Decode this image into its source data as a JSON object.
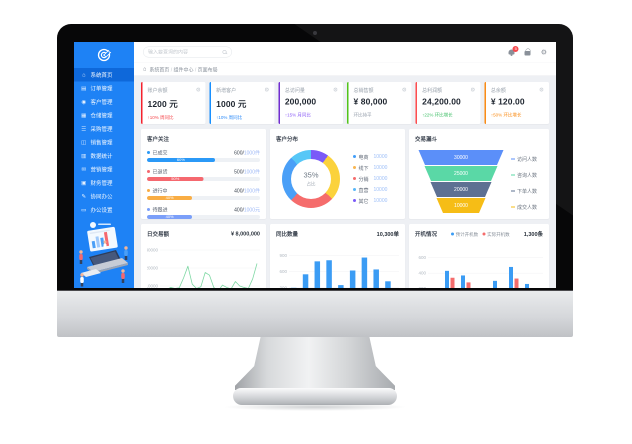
{
  "topbar": {
    "search_placeholder": "输入要查询的内容",
    "notification_badge": "5"
  },
  "breadcrumb": {
    "items": [
      "系统首页",
      "组件中心",
      "页面布局"
    ]
  },
  "sidebar": {
    "items": [
      {
        "id": "home",
        "icon": "home-icon",
        "label": "系统首页",
        "active": true
      },
      {
        "id": "orders",
        "icon": "order-icon",
        "label": "订单管理",
        "active": false
      },
      {
        "id": "customers",
        "icon": "customer-icon",
        "label": "客户管理",
        "active": false
      },
      {
        "id": "warehouse",
        "icon": "warehouse-icon",
        "label": "仓储管理",
        "active": false
      },
      {
        "id": "purchase",
        "icon": "purchase-icon",
        "label": "采购管理",
        "active": false
      },
      {
        "id": "sales",
        "icon": "sales-icon",
        "label": "销售管理",
        "active": false
      },
      {
        "id": "stats",
        "icon": "stats-icon",
        "label": "数据统计",
        "active": false
      },
      {
        "id": "marketing",
        "icon": "marketing-icon",
        "label": "营销管理",
        "active": false
      },
      {
        "id": "finance",
        "icon": "finance-icon",
        "label": "财务管理",
        "active": false
      },
      {
        "id": "office",
        "icon": "office-icon",
        "label": "协同办公",
        "active": false
      },
      {
        "id": "settings",
        "icon": "settings-icon",
        "label": "办公设置",
        "active": false
      }
    ]
  },
  "kpi_cards": [
    {
      "accent": "#f5222d",
      "title": "账户余额",
      "value": "1200 元",
      "sub": "↑10% 周同比",
      "sub_color": "#f5484d"
    },
    {
      "accent": "#1890ff",
      "title": "新增客户",
      "value": "1000 元",
      "sub": "↑10% 周同比",
      "sub_color": "#2c8af8"
    },
    {
      "accent": "#722ed1",
      "title": "总访问量",
      "value": "200,000",
      "sub": "↑15% 月同比",
      "sub_color": "#8b5cf6"
    },
    {
      "accent": "#52c41a",
      "title": "总销售额",
      "value": "¥ 80,000",
      "sub": "环比持平",
      "sub_color": "#98a1ad"
    },
    {
      "accent": "#ff4d4f",
      "title": "总利润额",
      "value": "24,200.00",
      "sub": "↑22% 环比增长",
      "sub_color": "#3fbf67"
    },
    {
      "accent": "#fa8c16",
      "title": "总余额",
      "value": "¥ 120.00",
      "sub": "↑50% 环比增长",
      "sub_color": "#fa8c16"
    }
  ],
  "progress_panel": {
    "title": "客户关注",
    "rows": [
      {
        "label": "已成交",
        "color": "#2b99f7",
        "pct": 60,
        "pct_label": "60%",
        "num": "600/",
        "den": "1000件"
      },
      {
        "label": "已退货",
        "color": "#f5686f",
        "pct": 50,
        "pct_label": "50%",
        "num": "500/",
        "den": "1000件"
      },
      {
        "label": "进行中",
        "color": "#f9ad44",
        "pct": 40,
        "pct_label": "40%",
        "num": "400/",
        "den": "1000件"
      },
      {
        "label": "待跟进",
        "color": "#7b9ff9",
        "pct": 40,
        "pct_label": "40%",
        "num": "400/",
        "den": "1000元"
      }
    ]
  },
  "donut_panel": {
    "title": "客户分布",
    "center_value": "35%",
    "center_label": "占比",
    "chart_data": {
      "type": "pie",
      "segments": [
        {
          "label": "其它",
          "value": 10,
          "color": "#7a5af8"
        },
        {
          "label": "线下",
          "value": 27,
          "color": "#fbd23c"
        },
        {
          "label": "分销",
          "value": 25,
          "color": "#f56c6c"
        },
        {
          "label": "电商",
          "value": 26,
          "color": "#4a9ff7"
        },
        {
          "label": "直营",
          "value": 12,
          "color": "#56c7f7"
        }
      ]
    },
    "legend": [
      {
        "label": "电商",
        "value": "10000",
        "color": "#419ef9"
      },
      {
        "label": "线下",
        "value": "10000",
        "color": "#f8b551"
      },
      {
        "label": "分销",
        "value": "10000",
        "color": "#f56c6c"
      },
      {
        "label": "直营",
        "value": "10000",
        "color": "#58b7f8"
      },
      {
        "label": "其它",
        "value": "10000",
        "color": "#7a5af8"
      }
    ]
  },
  "funnel_panel": {
    "title": "交易漏斗",
    "chart_data": {
      "type": "funnel",
      "layers": [
        {
          "label": "访问人数",
          "value": "30000",
          "color": "#5b8ff9"
        },
        {
          "label": "咨询人数",
          "value": "25000",
          "color": "#5ad8a6"
        },
        {
          "label": "下单人数",
          "value": "20000",
          "color": "#5d7092"
        },
        {
          "label": "成交人数",
          "value": "10000",
          "color": "#f6bd16"
        }
      ]
    }
  },
  "line_panel": {
    "title": "日交易额",
    "total": "¥ 8,000,000",
    "chart_data": {
      "type": "line",
      "color": "#7fd8a4",
      "ymax": 30000,
      "yticks": [
        30000,
        20000,
        10000
      ],
      "values": [
        8500,
        8000,
        9200,
        8600,
        9000,
        14500,
        21000,
        11000,
        8600,
        9600,
        17500,
        16000,
        9200,
        7200,
        10500,
        9200,
        8400,
        12500,
        10000,
        9200,
        8600,
        14000,
        22500
      ]
    }
  },
  "bar_panel": {
    "title": "同比数量",
    "total": "10,300单",
    "chart_data": {
      "type": "bar",
      "color": "#3b9cf4",
      "ymax": 1000,
      "yticks": [
        900,
        600,
        300
      ],
      "values": [
        300,
        550,
        790,
        810,
        350,
        620,
        860,
        640,
        420
      ]
    }
  },
  "grouped_panel": {
    "title": "开机情况",
    "total": "1,300条",
    "legend": [
      {
        "label": "预计开机数",
        "color": "#3b9cf4"
      },
      {
        "label": "实际开机数",
        "color": "#f56c6c"
      }
    ],
    "chart_data": {
      "type": "bar",
      "ymax": 700,
      "yticks": [
        600,
        400,
        200
      ],
      "series": [
        {
          "name": "预计开机数",
          "color": "#3b9cf4",
          "values": [
            120,
            430,
            370,
            90,
            300,
            480,
            260
          ]
        },
        {
          "name": "实际开机数",
          "color": "#f56c6c",
          "values": [
            200,
            340,
            280,
            150,
            120,
            330,
            180
          ]
        }
      ]
    }
  }
}
